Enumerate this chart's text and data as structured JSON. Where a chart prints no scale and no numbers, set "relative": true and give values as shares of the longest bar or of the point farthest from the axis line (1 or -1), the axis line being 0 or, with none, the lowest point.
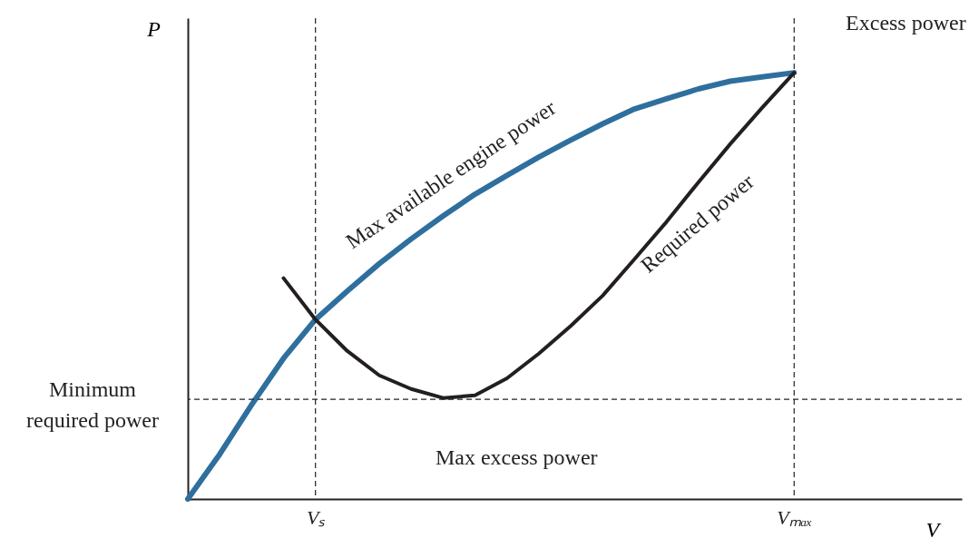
{
  "chart_data": {
    "type": "line",
    "relative": true,
    "xlabel": "V",
    "ylabel": "P",
    "categories": [
      null,
      null,
      null,
      null,
      "Vₛ",
      null,
      null,
      null,
      null,
      null,
      null,
      null,
      null,
      null,
      null,
      null,
      null,
      null,
      null,
      "Vₘₐₓ",
      null,
      null,
      null,
      null,
      null
    ],
    "grid": false,
    "line_style": "solid",
    "series": [
      {
        "name": "Max available engine power",
        "color": "#2e6f9e",
        "values": [
          0,
          0.105,
          0.221,
          0.33,
          0.421,
          0.488,
          0.552,
          0.61,
          0.664,
          0.715,
          0.759,
          0.802,
          0.842,
          0.88,
          0.915,
          0.939,
          0.962,
          0.98,
          0.99,
          1,
          null,
          null,
          null,
          null,
          null
        ]
      },
      {
        "name": "Required power",
        "color": "#231f20",
        "values": [
          null,
          null,
          null,
          0.518,
          0.421,
          0.347,
          0.29,
          0.258,
          0.237,
          0.243,
          0.283,
          0.341,
          0.406,
          0.477,
          0.563,
          0.65,
          0.743,
          0.833,
          0.918,
          1,
          null,
          null,
          null,
          null,
          null
        ]
      }
    ],
    "ref_lines": [
      {
        "axis": "x",
        "value": "Vₛ",
        "line_style": "dashed"
      },
      {
        "axis": "x",
        "value": "Vₘₐₓ",
        "line_style": "dashed"
      },
      {
        "axis": "y",
        "value": 0.234,
        "label": "Minimum required power",
        "line_style": "dashed"
      }
    ],
    "annotations": [
      "Excess power",
      "Max excess power"
    ]
  }
}
